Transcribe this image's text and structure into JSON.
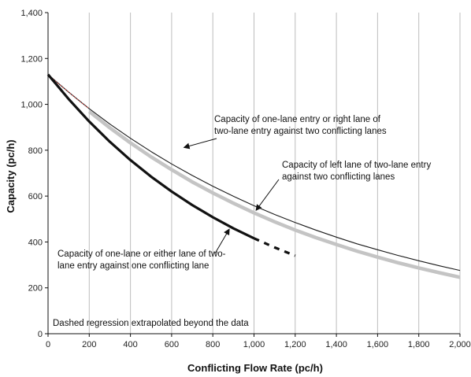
{
  "chart_data": {
    "type": "line",
    "xlabel": "Conflicting Flow Rate (pc/h)",
    "ylabel": "Capacity (pc/h)",
    "xlim": [
      0,
      2000
    ],
    "ylim": [
      0,
      1400
    ],
    "x_ticks": [
      0,
      200,
      400,
      600,
      800,
      1000,
      1200,
      1400,
      1600,
      1800,
      2000
    ],
    "y_ticks": [
      0,
      200,
      400,
      600,
      800,
      1000,
      1200,
      1400
    ],
    "x_tick_labels": [
      "0",
      "200",
      "400",
      "600",
      "800",
      "1,000",
      "1,200",
      "1,400",
      "1,600",
      "1,800",
      "2,000"
    ],
    "y_tick_labels": [
      "0",
      "200",
      "400",
      "600",
      "800",
      "1,000",
      "1,200",
      "1,400"
    ],
    "grid": {
      "vertical": true,
      "horizontal": false
    },
    "series": [
      {
        "style": "thin-black",
        "color": "#1a1a1a",
        "x": [
          0,
          100,
          200,
          300,
          400,
          500,
          600,
          700,
          800,
          900,
          1000,
          1100,
          1200,
          1300,
          1400,
          1500,
          1600,
          1700,
          1800,
          1900,
          2000
        ],
        "y": [
          1130,
          1053,
          981,
          914,
          852,
          794,
          740,
          690,
          643,
          599,
          558,
          520,
          485,
          452,
          421,
          392,
          366,
          341,
          318,
          296,
          276
        ]
      },
      {
        "style": "thick-gray",
        "color": "#c4c4c4",
        "x": [
          200,
          300,
          400,
          500,
          600,
          700,
          800,
          900,
          1000,
          1100,
          1200,
          1300,
          1400,
          1500,
          1600,
          1700,
          1800,
          1900,
          2000
        ],
        "y": [
          969,
          898,
          832,
          771,
          715,
          662,
          614,
          569,
          527,
          488,
          452,
          419,
          389,
          360,
          334,
          309,
          287,
          266,
          246
        ]
      },
      {
        "style": "dotted-red",
        "color": "#c0504d",
        "x": [
          0,
          50,
          100,
          150,
          200
        ],
        "y": [
          1130,
          1090,
          1053,
          1016,
          981
        ]
      },
      {
        "style": "thick-black",
        "color": "#111111",
        "x": [
          0,
          100,
          200,
          300,
          400,
          500,
          600,
          700,
          800,
          900,
          1000
        ],
        "y": [
          1130,
          1023,
          925,
          837,
          757,
          685,
          620,
          561,
          508,
          459,
          416
        ]
      },
      {
        "style": "dashed-black",
        "color": "#111111",
        "x": [
          1000,
          1100,
          1200
        ],
        "y": [
          416,
          376,
          340
        ]
      }
    ],
    "annotations": [
      {
        "lines": [
          "Capacity of one-lane entry or right lane of",
          "two-lane entry against two conflicting lanes"
        ],
        "arrow_to": [
          660,
          812
        ]
      },
      {
        "lines": [
          "Capacity of left lane of two-lane entry",
          "against two conflicting lanes"
        ],
        "arrow_to": [
          1010,
          538
        ]
      },
      {
        "lines": [
          "Capacity of one-lane or either lane of two-",
          "lane entry against one conflicting lane"
        ],
        "arrow_to": [
          880,
          456
        ]
      }
    ],
    "note": "Dashed regression extrapolated beyond the data"
  }
}
